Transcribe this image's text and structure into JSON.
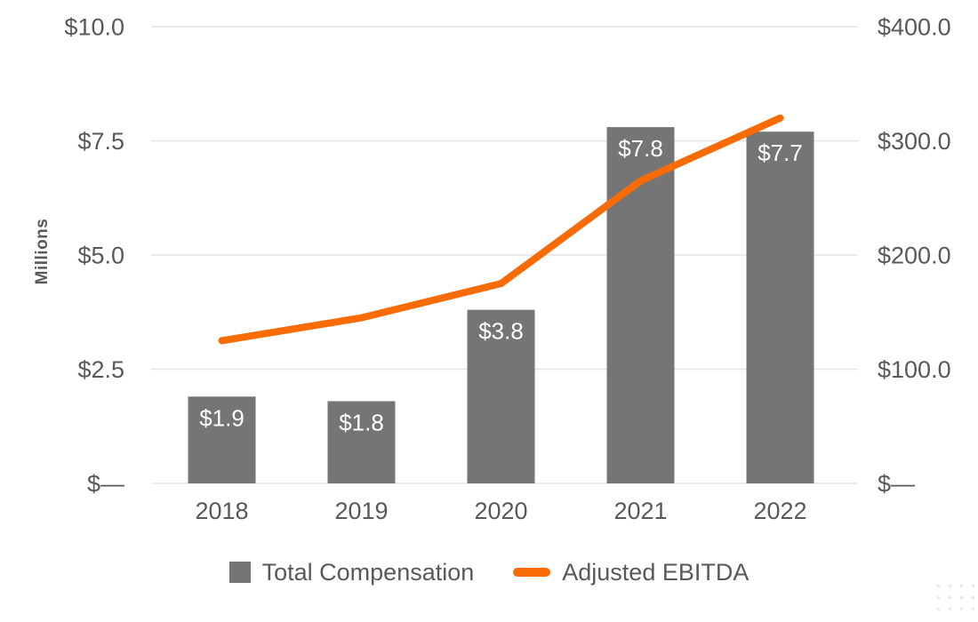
{
  "chart_data": {
    "type": "combo-bar-line",
    "categories": [
      "2018",
      "2019",
      "2020",
      "2021",
      "2022"
    ],
    "series": [
      {
        "name": "Total Compensation",
        "type": "bar",
        "axis": "left",
        "values": [
          1.9,
          1.8,
          3.8,
          7.8,
          7.7
        ],
        "labels": [
          "$1.9",
          "$1.8",
          "$3.8",
          "$7.8",
          "$7.7"
        ],
        "color": "#757575"
      },
      {
        "name": "Adjusted EBITDA",
        "type": "line",
        "axis": "right",
        "values": [
          125,
          145,
          175,
          265,
          320
        ],
        "color": "#F96B05"
      }
    ],
    "title": "",
    "xlabel": "",
    "ylabel_left": "Millions",
    "ylabel_right": "",
    "left_ticks": [
      "$—",
      "$2.5",
      "$5.0",
      "$7.5",
      "$10.0"
    ],
    "right_ticks": [
      "$—",
      "$100.0",
      "$200.0",
      "$300.0",
      "$400.0"
    ],
    "ylim_left": [
      0,
      10
    ],
    "ylim_right": [
      0,
      400
    ],
    "grid": true,
    "legend_position": "bottom",
    "colors": {
      "bar": "#757575",
      "line": "#F96B05",
      "axis_text": "#595959",
      "grid": "#E3E3E3",
      "bar_label_text": "#FFFFFF"
    }
  }
}
